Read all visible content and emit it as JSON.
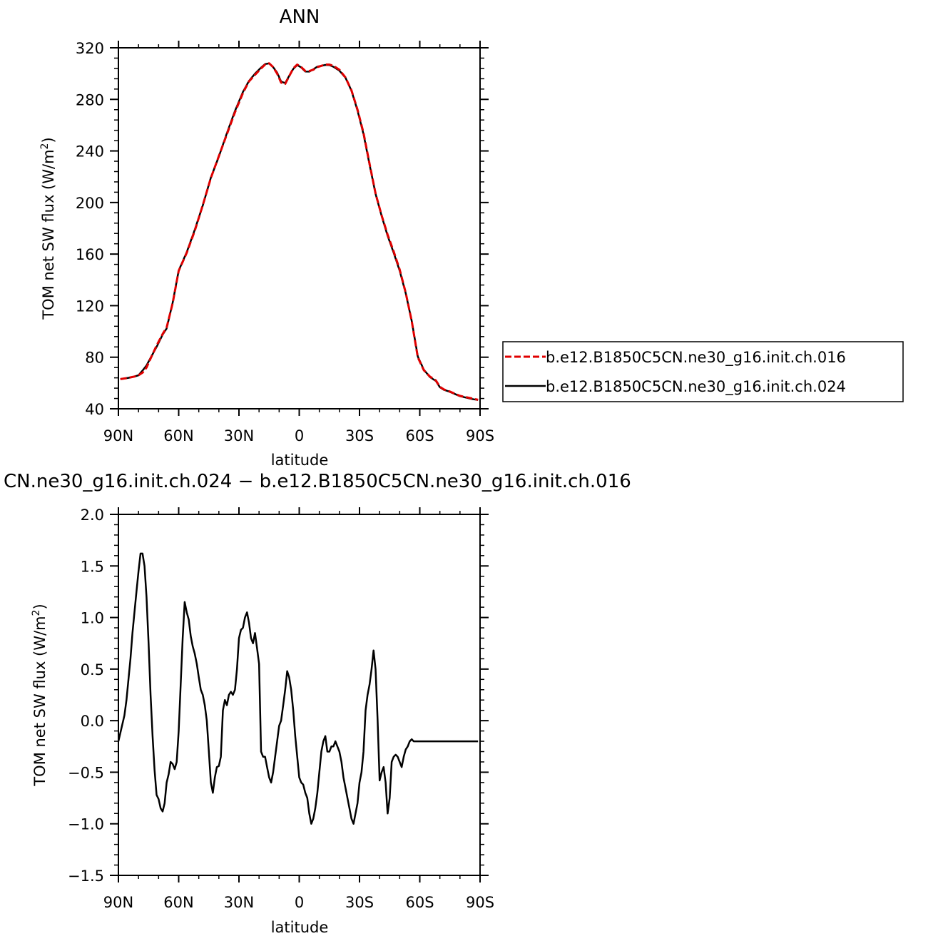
{
  "chart_data": [
    {
      "type": "line",
      "title": "ANN",
      "xlabel": "latitude",
      "ylabel": "TOM net SW flux (W/m²)",
      "ylabel_main": "TOM net SW flux (W/m",
      "ylabel_sup": "2",
      "ylabel_close": ")",
      "x_range": [
        "90N",
        "90S"
      ],
      "xlim": [
        90,
        -90
      ],
      "ylim": [
        40,
        320
      ],
      "x_ticks": [
        90,
        60,
        30,
        0,
        -30,
        -60,
        -90
      ],
      "x_tick_labels": [
        "90N",
        "60N",
        "30N",
        "0",
        "30S",
        "60S",
        "90S"
      ],
      "y_ticks": [
        40,
        80,
        120,
        160,
        200,
        240,
        280,
        320
      ],
      "y_tick_labels": [
        "40",
        "80",
        "120",
        "160",
        "200",
        "240",
        "280",
        "320"
      ],
      "legend": {
        "placement": "right",
        "entries": [
          {
            "name": "b.e12.B1850C5CN.ne30_g16.init.ch.016",
            "color": "#e00000",
            "dash": "dashed"
          },
          {
            "name": "b.e12.B1850C5CN.ne30_g16.init.ch.024",
            "color": "#000000",
            "dash": "solid"
          }
        ]
      },
      "series": [
        {
          "name": "b.e12.B1850C5CN.ne30_g16.init.ch.016",
          "color": "#e00000",
          "dash": "dashed",
          "x": [
            89,
            85,
            82,
            80,
            78,
            76,
            74,
            71,
            68,
            66,
            63,
            60,
            56,
            52,
            48,
            44,
            40,
            36,
            32,
            28,
            25,
            22,
            19,
            17,
            15,
            13,
            11,
            9,
            7,
            5,
            3,
            1,
            -1,
            -3,
            -5,
            -7,
            -9,
            -11,
            -13,
            -15,
            -17,
            -20,
            -23,
            -26,
            -29,
            -32,
            -35,
            -38,
            -41,
            -44,
            -47,
            -50,
            -53,
            -56,
            -59,
            -62,
            -65,
            -68,
            -70,
            -72,
            -74,
            -77,
            -80,
            -83,
            -86,
            -89
          ],
          "values": [
            63,
            64,
            65,
            66,
            68,
            72,
            79,
            89,
            98,
            103,
            122,
            147,
            161,
            178,
            198,
            219,
            236,
            253,
            270,
            285,
            294,
            299,
            304,
            307,
            308,
            305,
            300,
            293,
            292,
            298,
            304,
            307,
            305,
            302,
            302,
            303,
            305,
            306,
            307,
            307,
            306,
            303,
            297,
            287,
            272,
            254,
            230,
            207,
            190,
            175,
            162,
            148,
            130,
            108,
            80,
            70,
            65,
            62,
            57,
            55,
            54,
            52,
            50,
            49,
            48,
            47
          ]
        },
        {
          "name": "b.e12.B1850C5CN.ne30_g16.init.ch.024",
          "color": "#000000",
          "dash": "solid",
          "x": [
            89,
            85,
            82,
            80,
            78,
            76,
            74,
            71,
            68,
            66,
            63,
            60,
            56,
            52,
            48,
            44,
            40,
            36,
            32,
            28,
            25,
            22,
            19,
            17,
            15,
            13,
            11,
            9,
            7,
            5,
            3,
            1,
            -1,
            -3,
            -5,
            -7,
            -9,
            -11,
            -13,
            -15,
            -17,
            -20,
            -23,
            -26,
            -29,
            -32,
            -35,
            -38,
            -41,
            -44,
            -47,
            -50,
            -53,
            -56,
            -59,
            -62,
            -65,
            -68,
            -70,
            -72,
            -74,
            -77,
            -80,
            -83,
            -86,
            -89
          ],
          "values": [
            63,
            64,
            65,
            66,
            69.6,
            73.6,
            79.5,
            88,
            97.5,
            102.3,
            122.4,
            147.2,
            161.5,
            178.8,
            197.7,
            219.3,
            235.6,
            253.8,
            271,
            285.8,
            294.3,
            299.9,
            304.6,
            307.4,
            307.9,
            305,
            300.8,
            293.8,
            292.6,
            298.2,
            303.6,
            306.6,
            304.7,
            301.6,
            301.5,
            303.3,
            305.4,
            306,
            306.7,
            306.6,
            305.3,
            302.3,
            296.8,
            286.8,
            271.3,
            253.1,
            229.4,
            206.7,
            189.6,
            174.2,
            161,
            147.1,
            129.6,
            108.1,
            80.6,
            70.4,
            64.6,
            61.6,
            56.7,
            54.7,
            53.7,
            51.8,
            49.8,
            48.7,
            47.6,
            46.8
          ]
        }
      ]
    },
    {
      "type": "line",
      "title": "CN.ne30_g16.init.ch.024 − b.e12.B1850C5CN.ne30_g16.init.ch.016",
      "xlabel": "latitude",
      "ylabel": "TOM net SW flux (W/m²)",
      "ylabel_main": "TOM net SW flux (W/m",
      "ylabel_sup": "2",
      "ylabel_close": ")",
      "xlim": [
        90,
        -90
      ],
      "ylim": [
        -1.5,
        2.0
      ],
      "x_ticks": [
        90,
        60,
        30,
        0,
        -30,
        -60,
        -90
      ],
      "x_tick_labels": [
        "90N",
        "60N",
        "30N",
        "0",
        "30S",
        "60S",
        "90S"
      ],
      "y_ticks": [
        -1.5,
        -1.0,
        -0.5,
        0.0,
        0.5,
        1.0,
        1.5,
        2.0
      ],
      "y_tick_labels": [
        "−1.5",
        "−1.0",
        "−0.5",
        "0.0",
        "0.5",
        "1.0",
        "1.5",
        "2.0"
      ],
      "series": [
        {
          "color": "#000000",
          "x": [
            90,
            87,
            86,
            85,
            84,
            83,
            82,
            81,
            80,
            79,
            78,
            77,
            76,
            75,
            74,
            73,
            72,
            71,
            70,
            69,
            68,
            67,
            66,
            65,
            64,
            63,
            62,
            61,
            60,
            59,
            58,
            57,
            56,
            55,
            54,
            53,
            52,
            51,
            50,
            49,
            48,
            47,
            46,
            45,
            44,
            43,
            42,
            41,
            40,
            39,
            38,
            37,
            36,
            35,
            34,
            33,
            32,
            31,
            30,
            29,
            28,
            27,
            26,
            25,
            24,
            23,
            22,
            21,
            20,
            19,
            18,
            17,
            16,
            15,
            14,
            13,
            12,
            11,
            10,
            9,
            8,
            7,
            6,
            5,
            4,
            3,
            2,
            1,
            0,
            -1,
            -2,
            -3,
            -4,
            -5,
            -6,
            -7,
            -8,
            -9,
            -10,
            -11,
            -12,
            -13,
            -14,
            -15,
            -16,
            -17,
            -18,
            -19,
            -20,
            -21,
            -22,
            -23,
            -24,
            -25,
            -26,
            -27,
            -28,
            -29,
            -30,
            -31,
            -32,
            -33,
            -34,
            -35,
            -36,
            -37,
            -38,
            -39,
            -40,
            -41,
            -42,
            -43,
            -44,
            -45,
            -46,
            -47,
            -48,
            -49,
            -50,
            -51,
            -52,
            -53,
            -54,
            -55,
            -56,
            -57,
            -58,
            -59,
            -60,
            -61,
            -62,
            -63,
            -64,
            -65,
            -66,
            -67,
            -68,
            -69,
            -70,
            -71,
            -72,
            -73,
            -74,
            -75,
            -76,
            -77,
            -78,
            -79,
            -80,
            -81,
            -82,
            -83,
            -84,
            -85,
            -86,
            -87,
            -88,
            -89
          ],
          "values": [
            -0.2,
            0.05,
            0.2,
            0.4,
            0.6,
            0.85,
            1.05,
            1.25,
            1.45,
            1.62,
            1.62,
            1.5,
            1.2,
            0.75,
            0.25,
            -0.15,
            -0.48,
            -0.72,
            -0.76,
            -0.85,
            -0.88,
            -0.8,
            -0.6,
            -0.52,
            -0.4,
            -0.42,
            -0.47,
            -0.4,
            -0.1,
            0.35,
            0.8,
            1.15,
            1.05,
            0.98,
            0.82,
            0.72,
            0.65,
            0.55,
            0.42,
            0.3,
            0.25,
            0.15,
            0.0,
            -0.3,
            -0.6,
            -0.7,
            -0.55,
            -0.45,
            -0.44,
            -0.35,
            0.1,
            0.2,
            0.15,
            0.25,
            0.28,
            0.25,
            0.3,
            0.5,
            0.8,
            0.88,
            0.9,
            1.0,
            1.05,
            0.95,
            0.8,
            0.75,
            0.85,
            0.7,
            0.55,
            -0.3,
            -0.35,
            -0.35,
            -0.45,
            -0.55,
            -0.6,
            -0.5,
            -0.35,
            -0.2,
            -0.05,
            0.0,
            0.15,
            0.3,
            0.48,
            0.42,
            0.3,
            0.1,
            -0.15,
            -0.35,
            -0.55,
            -0.6,
            -0.62,
            -0.7,
            -0.75,
            -0.9,
            -1.0,
            -0.95,
            -0.85,
            -0.7,
            -0.5,
            -0.3,
            -0.2,
            -0.15,
            -0.3,
            -0.3,
            -0.25,
            -0.25,
            -0.2,
            -0.25,
            -0.3,
            -0.4,
            -0.55,
            -0.65,
            -0.75,
            -0.85,
            -0.95,
            -1.0,
            -0.9,
            -0.8,
            -0.6,
            -0.5,
            -0.3,
            0.1,
            0.25,
            0.35,
            0.5,
            0.68,
            0.5,
            0.0,
            -0.58,
            -0.5,
            -0.45,
            -0.6,
            -0.9,
            -0.75,
            -0.4,
            -0.35,
            -0.33,
            -0.35,
            -0.4,
            -0.45,
            -0.35,
            -0.28,
            -0.25,
            -0.2,
            -0.18,
            -0.2,
            -0.2,
            -0.2,
            -0.2,
            -0.2,
            -0.2,
            -0.2,
            -0.2,
            -0.2,
            -0.2,
            -0.2,
            -0.2,
            -0.2,
            -0.2,
            -0.2,
            -0.2,
            -0.2,
            -0.2,
            -0.2,
            -0.2,
            -0.2,
            -0.2,
            -0.2,
            -0.2,
            -0.2,
            -0.2,
            -0.2,
            -0.2,
            -0.2,
            -0.2,
            -0.2,
            -0.2,
            -0.2
          ]
        }
      ]
    }
  ]
}
